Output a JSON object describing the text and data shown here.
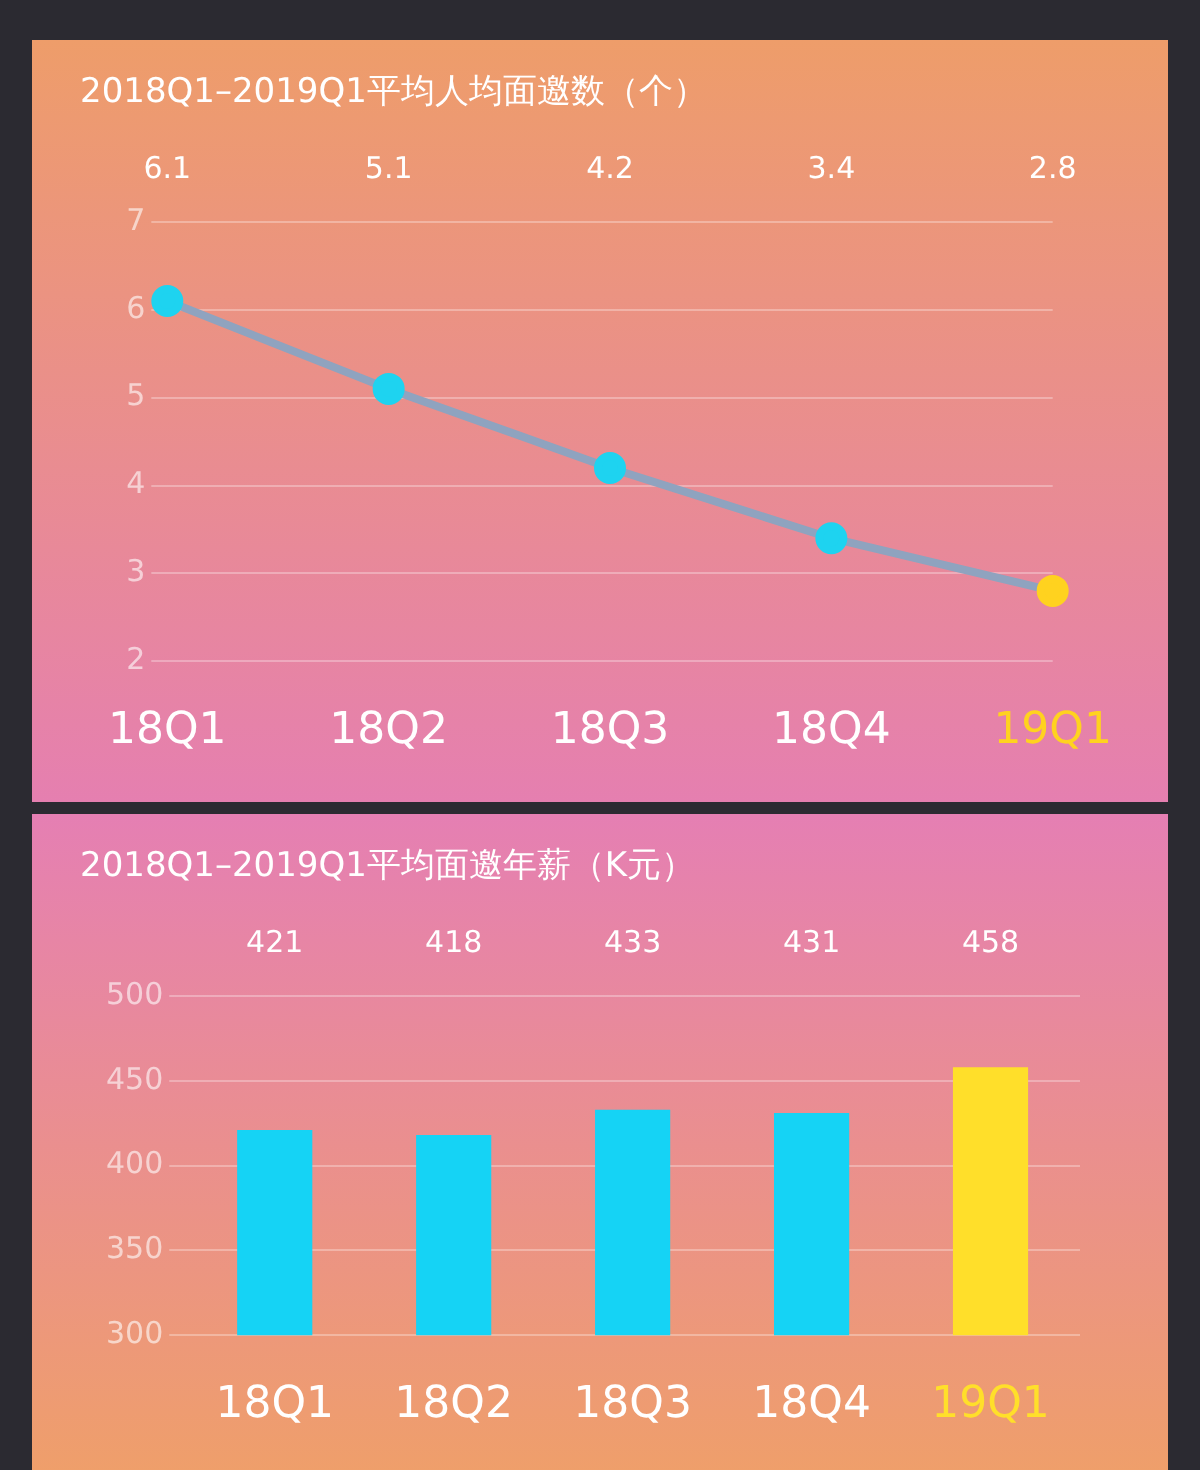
{
  "chart_data": [
    {
      "type": "line",
      "title": "2018Q1–2019Q1平均人均面邀数（个）",
      "categories": [
        "18Q1",
        "18Q2",
        "18Q3",
        "18Q4",
        "19Q1"
      ],
      "values": [
        6.1,
        5.1,
        4.2,
        3.4,
        2.8
      ],
      "color": "#8fa3bf",
      "colors": [
        "#1ed3f0",
        "#1ed3f0",
        "#1ed3f0",
        "#1ed3f0",
        "#ffd21f"
      ],
      "ylim": [
        2,
        7
      ],
      "yticks": [
        2,
        3,
        4,
        5,
        6,
        7
      ],
      "grid": "y",
      "marker": "circle",
      "data_labels": true
    },
    {
      "type": "bar",
      "title": "2018Q1–2019Q1平均面邀年薪（K元）",
      "categories": [
        "18Q1",
        "18Q2",
        "18Q3",
        "18Q4",
        "19Q1"
      ],
      "values": [
        421,
        418,
        433,
        431,
        458
      ],
      "colors": [
        "#15d3f5",
        "#15d3f5",
        "#15d3f5",
        "#15d3f5",
        "#ffdf2a"
      ],
      "ylim": [
        300,
        500
      ],
      "yticks": [
        300,
        350,
        400,
        450,
        500
      ],
      "grid": "y",
      "data_labels": true
    }
  ]
}
